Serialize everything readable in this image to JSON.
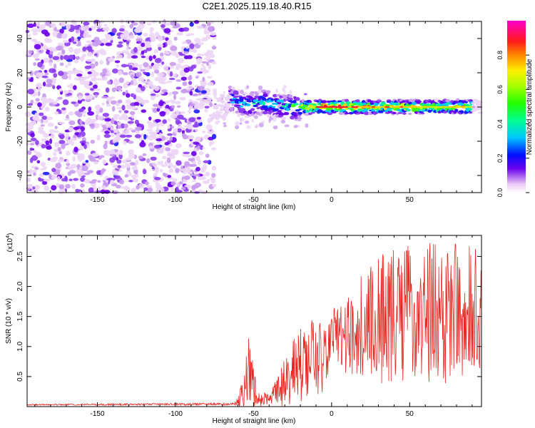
{
  "title": "C2E1.2025.119.18.40.R15",
  "colors": {
    "snr_line": "#e8251f",
    "frame": "#000000",
    "background": "#ffffff"
  },
  "chart_data": [
    {
      "type": "heatmap",
      "name": "spectrogram",
      "xlabel": "Height of straight line (km)",
      "ylabel": "Frequency (Hz)",
      "xlim": [
        -195,
        96
      ],
      "ylim": [
        -50,
        50
      ],
      "xticks": [
        "-150",
        "-100",
        "-50",
        "0",
        "50"
      ],
      "xtick_values": [
        -150,
        -100,
        -50,
        0,
        50
      ],
      "yticks": [
        "40",
        "20",
        "0",
        "-20",
        "-40"
      ],
      "ytick_values": [
        40,
        20,
        0,
        -20,
        -40
      ],
      "noise_region_km": [
        -195,
        -75
      ],
      "signal_band_hz": [
        -4,
        4
      ],
      "signal_features": [
        {
          "x": -65,
          "y": 5,
          "amp": 0.45
        },
        {
          "x": -55,
          "y": 1,
          "amp": 0.55
        },
        {
          "x": -45,
          "y": 3,
          "amp": 0.5
        },
        {
          "x": -30,
          "y": 0,
          "amp": 0.6
        },
        {
          "x": -10,
          "y": 0,
          "amp": 0.85
        },
        {
          "x": 0,
          "y": 0,
          "amp": 0.95
        },
        {
          "x": 30,
          "y": 0,
          "amp": 0.8
        },
        {
          "x": 60,
          "y": 0,
          "amp": 0.75
        },
        {
          "x": 90,
          "y": 0,
          "amp": 0.7
        }
      ],
      "colorbar": {
        "label": "Normalized spectral amplitude",
        "range": [
          0.0,
          1.0
        ],
        "ticks": [
          "0.0",
          "0.2",
          "0.4",
          "0.6",
          "0.8"
        ],
        "tick_values": [
          0.0,
          0.2,
          0.4,
          0.6,
          0.8
        ]
      }
    },
    {
      "type": "line",
      "name": "snr",
      "xlabel": "Height of straight line (km)",
      "ylabel": "SNR (10 * v/v)",
      "y_multiplier": "(x10",
      "y_multiplier_exp": "4",
      "y_multiplier_close": ")",
      "xlim": [
        -195,
        96
      ],
      "ylim": [
        0,
        2.85
      ],
      "xticks": [
        "-150",
        "-100",
        "-50",
        "0",
        "50"
      ],
      "xtick_values": [
        -150,
        -100,
        -50,
        0,
        50
      ],
      "yticks": [
        "0.5",
        "1.0",
        "1.5",
        "2.0",
        "2.5"
      ],
      "ytick_values": [
        0.5,
        1.0,
        1.5,
        2.0,
        2.5
      ],
      "envelope": [
        {
          "x": -195,
          "base": 0.03,
          "spread": 0.01
        },
        {
          "x": -62,
          "base": 0.04,
          "spread": 0.02
        },
        {
          "x": -58,
          "base": 0.15,
          "spread": 0.2
        },
        {
          "x": -53,
          "base": 0.45,
          "spread": 0.65
        },
        {
          "x": -48,
          "base": 0.2,
          "spread": 0.25
        },
        {
          "x": -44,
          "base": 0.1,
          "spread": 0.1
        },
        {
          "x": -38,
          "base": 0.15,
          "spread": 0.15
        },
        {
          "x": -30,
          "base": 0.35,
          "spread": 0.4
        },
        {
          "x": -22,
          "base": 0.6,
          "spread": 0.6
        },
        {
          "x": -10,
          "base": 0.75,
          "spread": 0.7
        },
        {
          "x": -3,
          "base": 0.7,
          "spread": 0.5
        },
        {
          "x": 0,
          "base": 1.2,
          "spread": 0.35
        },
        {
          "x": 12,
          "base": 1.1,
          "spread": 0.8
        },
        {
          "x": 25,
          "base": 1.3,
          "spread": 1.0
        },
        {
          "x": 45,
          "base": 1.45,
          "spread": 1.2
        },
        {
          "x": 70,
          "base": 1.45,
          "spread": 1.2
        },
        {
          "x": 96,
          "base": 1.45,
          "spread": 1.1
        }
      ]
    }
  ]
}
